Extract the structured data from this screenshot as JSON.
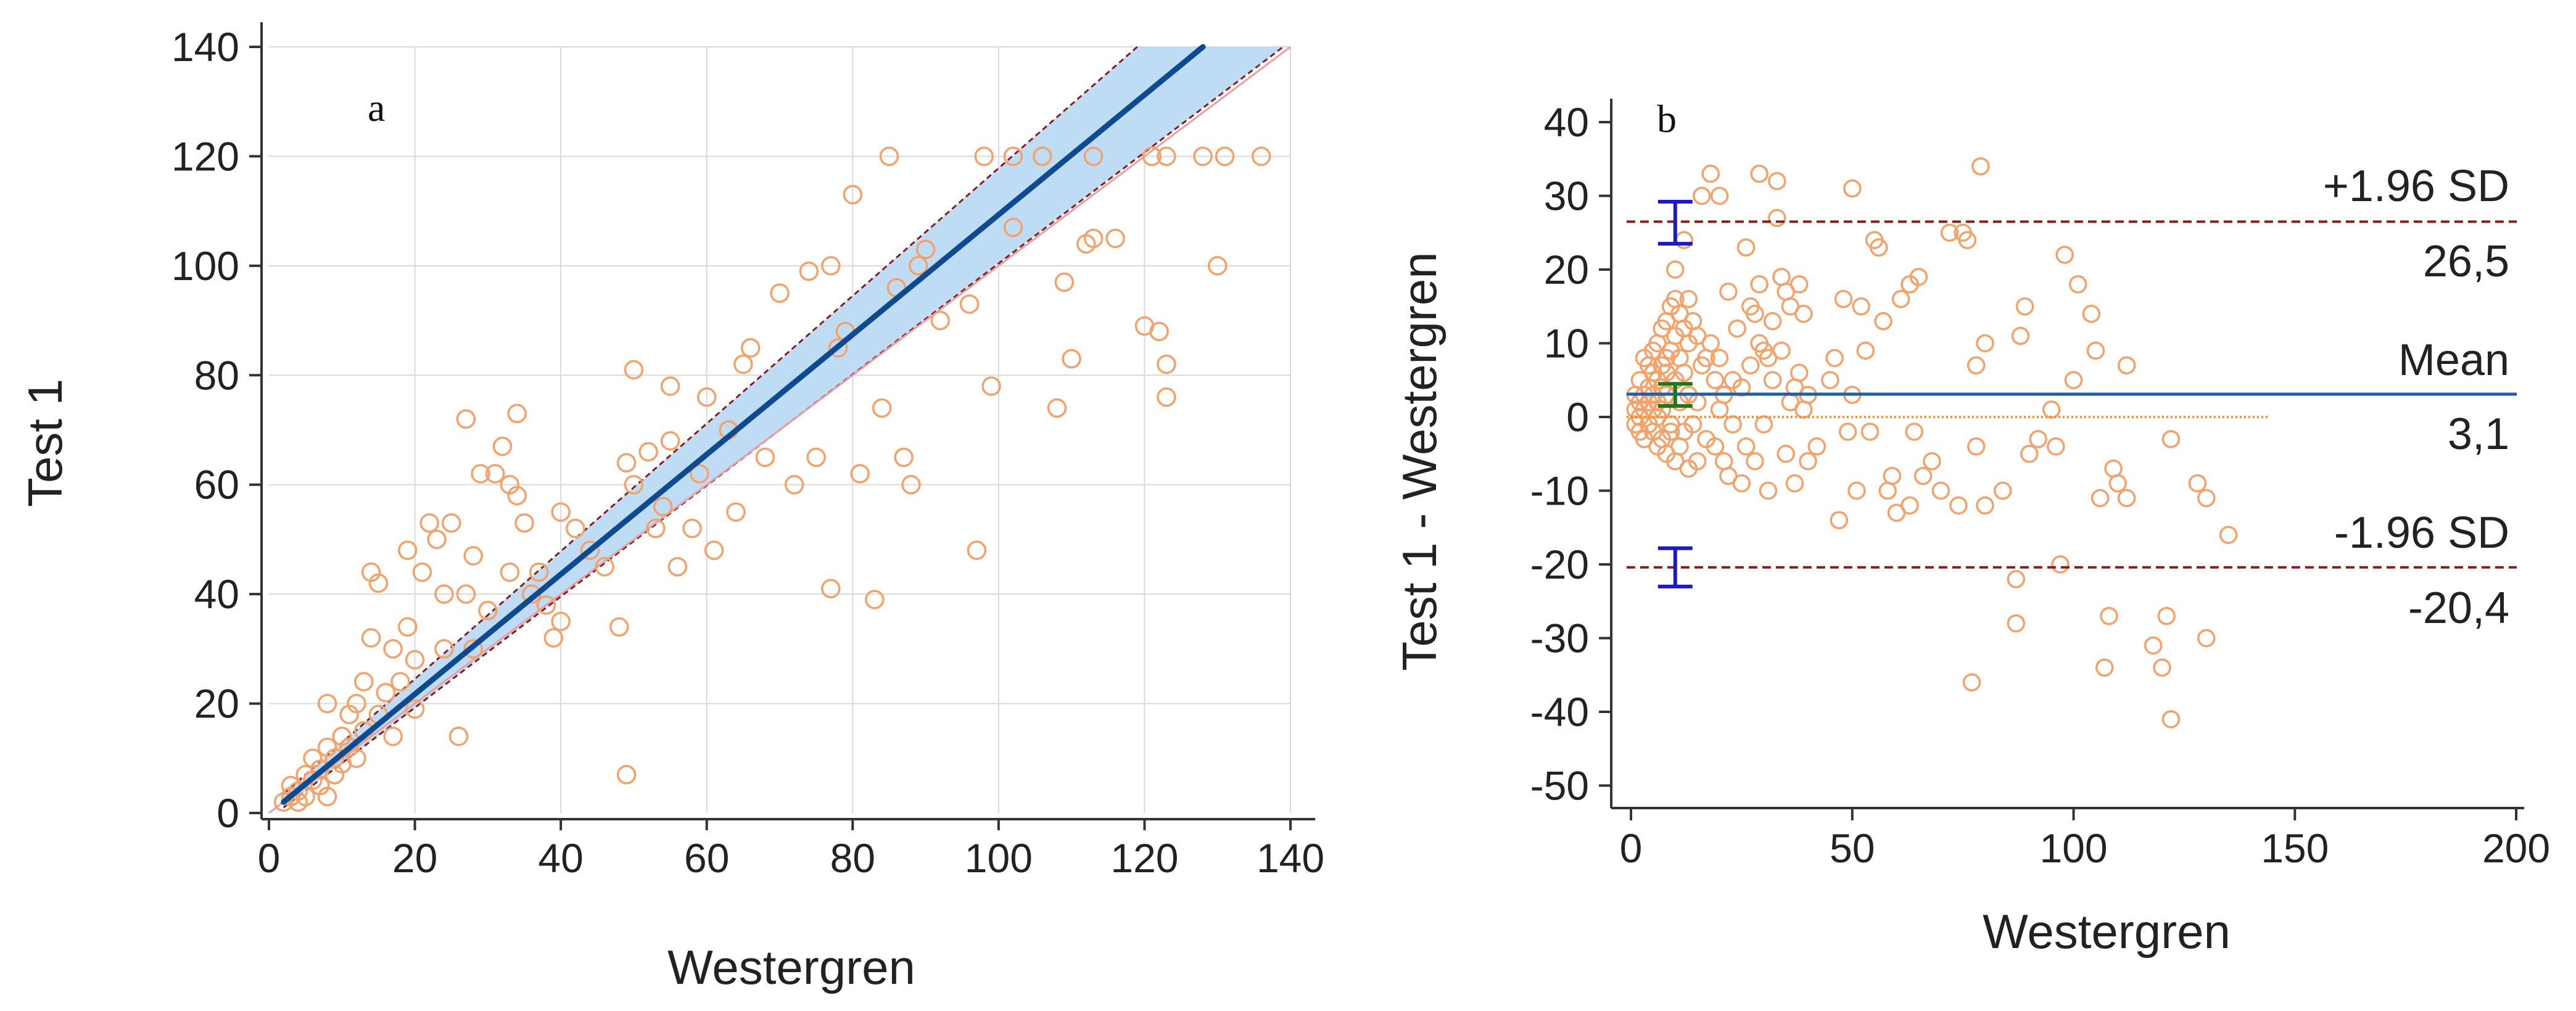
{
  "chart_data": [
    {
      "type": "scatter",
      "panel_label": "a",
      "title": "",
      "xlabel": "Westergren",
      "ylabel": "Test 1",
      "xlim": [
        0,
        140
      ],
      "ylim": [
        0,
        140
      ],
      "x_ticks": [
        "0",
        "20",
        "40",
        "60",
        "80",
        "100",
        "120",
        "140"
      ],
      "y_ticks": [
        "0",
        "20",
        "40",
        "60",
        "80",
        "100",
        "120",
        "140"
      ],
      "grid": true,
      "regression": {
        "x1": 2,
        "y1": 2,
        "x2": 128,
        "y2": 140,
        "color": "#0d4a8f"
      },
      "confidence_band": {
        "lower": [
          [
            2,
            1
          ],
          [
            139,
            140
          ]
        ],
        "upper": [
          [
            2,
            3.5
          ],
          [
            119,
            140
          ]
        ],
        "fill": "#bfdcf5",
        "edge": "#8b1a1a"
      },
      "identity_line": {
        "from": [
          0,
          0
        ],
        "to": [
          140,
          140
        ],
        "color": "#e8a0a0"
      },
      "point_color": "#f5a26a",
      "points": [
        [
          2,
          2
        ],
        [
          3,
          3
        ],
        [
          3,
          5
        ],
        [
          4,
          2
        ],
        [
          4,
          4
        ],
        [
          5,
          7
        ],
        [
          5,
          3
        ],
        [
          6,
          6
        ],
        [
          6,
          10
        ],
        [
          7,
          5
        ],
        [
          7,
          8
        ],
        [
          8,
          3
        ],
        [
          8,
          12
        ],
        [
          8,
          20
        ],
        [
          9,
          10
        ],
        [
          9,
          7
        ],
        [
          10,
          9
        ],
        [
          10,
          14
        ],
        [
          11,
          18
        ],
        [
          11,
          12
        ],
        [
          12,
          10
        ],
        [
          12,
          20
        ],
        [
          13,
          24
        ],
        [
          13,
          15
        ],
        [
          14,
          32
        ],
        [
          14,
          44
        ],
        [
          15,
          42
        ],
        [
          15,
          18
        ],
        [
          16,
          22
        ],
        [
          17,
          30
        ],
        [
          17,
          14
        ],
        [
          18,
          24
        ],
        [
          19,
          34
        ],
        [
          19,
          48
        ],
        [
          20,
          28
        ],
        [
          20,
          19
        ],
        [
          21,
          44
        ],
        [
          22,
          53
        ],
        [
          23,
          50
        ],
        [
          24,
          40
        ],
        [
          24,
          30
        ],
        [
          25,
          53
        ],
        [
          26,
          14
        ],
        [
          27,
          72
        ],
        [
          27,
          40
        ],
        [
          28,
          47
        ],
        [
          28,
          30
        ],
        [
          29,
          62
        ],
        [
          30,
          37
        ],
        [
          31,
          62
        ],
        [
          32,
          67
        ],
        [
          33,
          60
        ],
        [
          33,
          44
        ],
        [
          34,
          58
        ],
        [
          34,
          73
        ],
        [
          35,
          53
        ],
        [
          36,
          40
        ],
        [
          37,
          44
        ],
        [
          38,
          38
        ],
        [
          39,
          32
        ],
        [
          40,
          55
        ],
        [
          40,
          35
        ],
        [
          42,
          52
        ],
        [
          44,
          48
        ],
        [
          46,
          45
        ],
        [
          48,
          34
        ],
        [
          49,
          7
        ],
        [
          49,
          64
        ],
        [
          50,
          81
        ],
        [
          50,
          60
        ],
        [
          52,
          66
        ],
        [
          53,
          52
        ],
        [
          54,
          56
        ],
        [
          55,
          78
        ],
        [
          55,
          68
        ],
        [
          56,
          45
        ],
        [
          58,
          52
        ],
        [
          59,
          62
        ],
        [
          60,
          76
        ],
        [
          61,
          48
        ],
        [
          63,
          70
        ],
        [
          64,
          55
        ],
        [
          65,
          82
        ],
        [
          66,
          85
        ],
        [
          68,
          65
        ],
        [
          70,
          95
        ],
        [
          72,
          60
        ],
        [
          74,
          99
        ],
        [
          75,
          65
        ],
        [
          77,
          100
        ],
        [
          77,
          41
        ],
        [
          78,
          85
        ],
        [
          79,
          88
        ],
        [
          80,
          113
        ],
        [
          81,
          62
        ],
        [
          83,
          39
        ],
        [
          84,
          74
        ],
        [
          85,
          120
        ],
        [
          86,
          96
        ],
        [
          87,
          65
        ],
        [
          88,
          60
        ],
        [
          89,
          100
        ],
        [
          90,
          103
        ],
        [
          92,
          90
        ],
        [
          96,
          93
        ],
        [
          97,
          48
        ],
        [
          98,
          120
        ],
        [
          99,
          78
        ],
        [
          102,
          107
        ],
        [
          102,
          120
        ],
        [
          106,
          120
        ],
        [
          108,
          74
        ],
        [
          109,
          97
        ],
        [
          110,
          83
        ],
        [
          112,
          104
        ],
        [
          113,
          120
        ],
        [
          113,
          105
        ],
        [
          116,
          105
        ],
        [
          120,
          89
        ],
        [
          121,
          120
        ],
        [
          122,
          88
        ],
        [
          123,
          120
        ],
        [
          123,
          76
        ],
        [
          123,
          82
        ],
        [
          128,
          120
        ],
        [
          130,
          100
        ],
        [
          131,
          120
        ],
        [
          136,
          120
        ]
      ]
    },
    {
      "type": "scatter",
      "panel_label": "b",
      "title": "",
      "xlabel": "Westergren",
      "ylabel": "Test 1 - Westergren",
      "xlim": [
        -5,
        200
      ],
      "ylim": [
        -52,
        42
      ],
      "x_ticks": [
        "0",
        "50",
        "100",
        "150",
        "200"
      ],
      "y_ticks": [
        "40",
        "30",
        "20",
        "10",
        "0",
        "-10",
        "-20",
        "-30",
        "-40",
        "-50"
      ],
      "grid": false,
      "mean_line": {
        "value": 3.1,
        "label": "Mean",
        "value_label": "3,1",
        "color": "#1f5ea8"
      },
      "upper_loa": {
        "value": 26.5,
        "label": "+1.96 SD",
        "value_label": "26,5",
        "color": "#8b1a1a"
      },
      "lower_loa": {
        "value": -20.4,
        "label": "-1.96 SD",
        "value_label": "-20,4",
        "color": "#8b1a1a"
      },
      "zero_line": {
        "value": 0,
        "x_end": 144,
        "color": "#f09030"
      },
      "error_bars": [
        {
          "x": 10,
          "low": 23.5,
          "high": 29.2,
          "color": "#1a1acc"
        },
        {
          "x": 10,
          "low": 1.5,
          "high": 4.5,
          "color": "#1a7a1a"
        },
        {
          "x": 10,
          "low": -23,
          "high": -17.8,
          "color": "#1a1acc"
        }
      ],
      "point_color": "#f5a26a",
      "points": [
        [
          1,
          1
        ],
        [
          1,
          3
        ],
        [
          1,
          -1
        ],
        [
          2,
          2
        ],
        [
          2,
          5
        ],
        [
          2,
          -2
        ],
        [
          2,
          0
        ],
        [
          3,
          8
        ],
        [
          3,
          1
        ],
        [
          3,
          -3
        ],
        [
          3,
          3
        ],
        [
          4,
          7
        ],
        [
          4,
          -1
        ],
        [
          4,
          4
        ],
        [
          4,
          2
        ],
        [
          5,
          6
        ],
        [
          5,
          -2
        ],
        [
          5,
          9
        ],
        [
          5,
          1
        ],
        [
          5,
          3
        ],
        [
          6,
          10
        ],
        [
          6,
          -4
        ],
        [
          6,
          5
        ],
        [
          6,
          2
        ],
        [
          6,
          0
        ],
        [
          7,
          12
        ],
        [
          7,
          -3
        ],
        [
          7,
          7
        ],
        [
          7,
          4
        ],
        [
          7,
          1
        ],
        [
          8,
          13
        ],
        [
          8,
          -5
        ],
        [
          8,
          8
        ],
        [
          8,
          3
        ],
        [
          8,
          6
        ],
        [
          9,
          15
        ],
        [
          9,
          -2
        ],
        [
          9,
          9
        ],
        [
          9,
          -1
        ],
        [
          10,
          20
        ],
        [
          10,
          16
        ],
        [
          10,
          11
        ],
        [
          10,
          -6
        ],
        [
          10,
          5
        ],
        [
          11,
          14
        ],
        [
          11,
          -4
        ],
        [
          11,
          8
        ],
        [
          11,
          2
        ],
        [
          12,
          24
        ],
        [
          12,
          12
        ],
        [
          12,
          -2
        ],
        [
          12,
          6
        ],
        [
          13,
          16
        ],
        [
          13,
          10
        ],
        [
          13,
          -7
        ],
        [
          13,
          3
        ],
        [
          14,
          13
        ],
        [
          14,
          -1
        ],
        [
          15,
          11
        ],
        [
          15,
          2
        ],
        [
          15,
          -6
        ],
        [
          16,
          30
        ],
        [
          16,
          7
        ],
        [
          17,
          8
        ],
        [
          17,
          -3
        ],
        [
          18,
          33
        ],
        [
          18,
          10
        ],
        [
          19,
          5
        ],
        [
          19,
          -4
        ],
        [
          20,
          30
        ],
        [
          20,
          8
        ],
        [
          20,
          1
        ],
        [
          21,
          3
        ],
        [
          21,
          -6
        ],
        [
          22,
          17
        ],
        [
          22,
          -8
        ],
        [
          23,
          5
        ],
        [
          23,
          -1
        ],
        [
          24,
          12
        ],
        [
          25,
          4
        ],
        [
          25,
          -9
        ],
        [
          26,
          23
        ],
        [
          26,
          -4
        ],
        [
          27,
          15
        ],
        [
          27,
          7
        ],
        [
          28,
          14
        ],
        [
          28,
          -6
        ],
        [
          29,
          33
        ],
        [
          29,
          18
        ],
        [
          29,
          10
        ],
        [
          30,
          9
        ],
        [
          30,
          -1
        ],
        [
          31,
          8
        ],
        [
          31,
          -10
        ],
        [
          32,
          13
        ],
        [
          32,
          5
        ],
        [
          33,
          32
        ],
        [
          33,
          27
        ],
        [
          34,
          19
        ],
        [
          34,
          9
        ],
        [
          35,
          17
        ],
        [
          35,
          -5
        ],
        [
          36,
          15
        ],
        [
          36,
          2
        ],
        [
          37,
          4
        ],
        [
          37,
          -9
        ],
        [
          38,
          18
        ],
        [
          38,
          6
        ],
        [
          39,
          14
        ],
        [
          39,
          1
        ],
        [
          40,
          3
        ],
        [
          40,
          -6
        ],
        [
          42,
          -4
        ],
        [
          45,
          5
        ],
        [
          46,
          8
        ],
        [
          47,
          -14
        ],
        [
          48,
          16
        ],
        [
          49,
          -2
        ],
        [
          50,
          31
        ],
        [
          50,
          3
        ],
        [
          51,
          -10
        ],
        [
          52,
          15
        ],
        [
          53,
          9
        ],
        [
          54,
          -2
        ],
        [
          55,
          24
        ],
        [
          56,
          23
        ],
        [
          57,
          13
        ],
        [
          58,
          -10
        ],
        [
          59,
          -8
        ],
        [
          60,
          -13
        ],
        [
          61,
          16
        ],
        [
          63,
          18
        ],
        [
          63,
          -12
        ],
        [
          64,
          -2
        ],
        [
          65,
          19
        ],
        [
          66,
          -8
        ],
        [
          68,
          -6
        ],
        [
          70,
          -10
        ],
        [
          72,
          25
        ],
        [
          74,
          -12
        ],
        [
          75,
          25
        ],
        [
          76,
          24
        ],
        [
          77,
          -36
        ],
        [
          78,
          7
        ],
        [
          78,
          -4
        ],
        [
          79,
          34
        ],
        [
          80,
          10
        ],
        [
          80,
          -12
        ],
        [
          84,
          -10
        ],
        [
          87,
          -22
        ],
        [
          87,
          -28
        ],
        [
          88,
          11
        ],
        [
          89,
          15
        ],
        [
          90,
          -5
        ],
        [
          92,
          -3
        ],
        [
          95,
          1
        ],
        [
          96,
          -4
        ],
        [
          97,
          -20
        ],
        [
          98,
          22
        ],
        [
          100,
          5
        ],
        [
          101,
          18
        ],
        [
          104,
          14
        ],
        [
          105,
          9
        ],
        [
          106,
          -11
        ],
        [
          107,
          -34
        ],
        [
          108,
          -27
        ],
        [
          109,
          -7
        ],
        [
          110,
          -9
        ],
        [
          112,
          -11
        ],
        [
          112,
          7
        ],
        [
          118,
          -31
        ],
        [
          120,
          -34
        ],
        [
          121,
          -27
        ],
        [
          122,
          -3
        ],
        [
          122,
          -41
        ],
        [
          128,
          -9
        ],
        [
          130,
          -11
        ],
        [
          130,
          -30
        ],
        [
          135,
          -16
        ]
      ]
    }
  ]
}
